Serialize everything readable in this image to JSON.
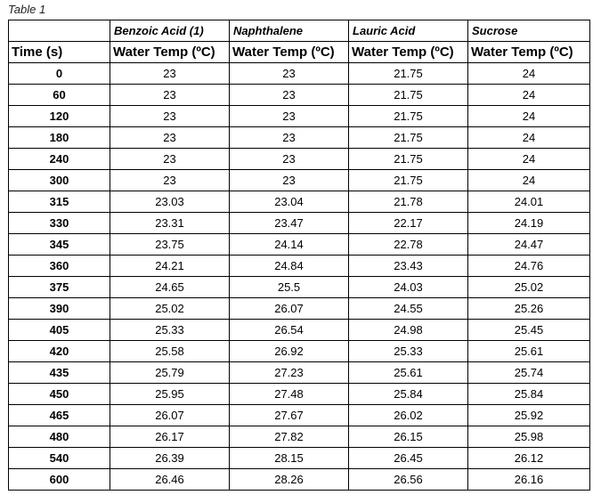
{
  "caption": "Table 1",
  "subheaders": [
    "",
    "Benzoic Acid (1)",
    "Naphthalene",
    "Lauric Acid",
    "Sucrose"
  ],
  "headers": [
    "Time (s)",
    "Water Temp (ºC)",
    "Water Temp (ºC)",
    "Water Temp (ºC)",
    "Water Temp (ºC)"
  ],
  "rows": [
    [
      "0",
      "23",
      "23",
      "21.75",
      "24"
    ],
    [
      "60",
      "23",
      "23",
      "21.75",
      "24"
    ],
    [
      "120",
      "23",
      "23",
      "21.75",
      "24"
    ],
    [
      "180",
      "23",
      "23",
      "21.75",
      "24"
    ],
    [
      "240",
      "23",
      "23",
      "21.75",
      "24"
    ],
    [
      "300",
      "23",
      "23",
      "21.75",
      "24"
    ],
    [
      "315",
      "23.03",
      "23.04",
      "21.78",
      "24.01"
    ],
    [
      "330",
      "23.31",
      "23.47",
      "22.17",
      "24.19"
    ],
    [
      "345",
      "23.75",
      "24.14",
      "22.78",
      "24.47"
    ],
    [
      "360",
      "24.21",
      "24.84",
      "23.43",
      "24.76"
    ],
    [
      "375",
      "24.65",
      "25.5",
      "24.03",
      "25.02"
    ],
    [
      "390",
      "25.02",
      "26.07",
      "24.55",
      "25.26"
    ],
    [
      "405",
      "25.33",
      "26.54",
      "24.98",
      "25.45"
    ],
    [
      "420",
      "25.58",
      "26.92",
      "25.33",
      "25.61"
    ],
    [
      "435",
      "25.79",
      "27.23",
      "25.61",
      "25.74"
    ],
    [
      "450",
      "25.95",
      "27.48",
      "25.84",
      "25.84"
    ],
    [
      "465",
      "26.07",
      "27.67",
      "26.02",
      "25.92"
    ],
    [
      "480",
      "26.17",
      "27.82",
      "26.15",
      "25.98"
    ],
    [
      "540",
      "26.39",
      "28.15",
      "26.45",
      "26.12"
    ],
    [
      "600",
      "26.46",
      "28.26",
      "26.56",
      "26.16"
    ]
  ]
}
